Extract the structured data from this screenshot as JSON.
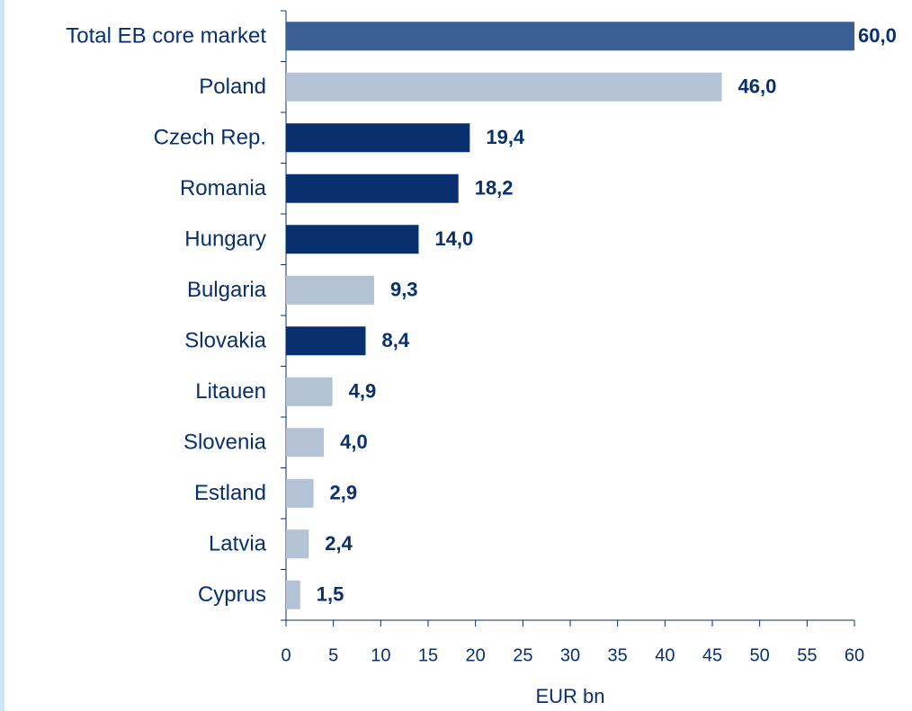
{
  "chart_data": {
    "type": "barh",
    "categories": [
      "Total EB core market",
      "Poland",
      "Czech Rep.",
      "Romania",
      "Hungary",
      "Bulgaria",
      "Slovakia",
      "Litauen",
      "Slovenia",
      "Estland",
      "Latvia",
      "Cyprus"
    ],
    "values": [
      60.0,
      46.0,
      19.4,
      18.2,
      14.0,
      9.3,
      8.4,
      4.9,
      4.0,
      2.9,
      2.4,
      1.5
    ],
    "value_labels": [
      "60,0",
      "46,0",
      "19,4",
      "18,2",
      "14,0",
      "9,3",
      "8,4",
      "4,9",
      "4,0",
      "2,9",
      "2,4",
      "1,5"
    ],
    "colors": [
      "#3a5f94",
      "#b4c2d6",
      "#08306e",
      "#08306e",
      "#08306e",
      "#b4c2d6",
      "#08306e",
      "#b4c2d6",
      "#b4c2d6",
      "#b4c2d6",
      "#b4c2d6",
      "#b4c2d6"
    ],
    "xlabel": "EUR bn",
    "xlim": [
      0,
      60
    ],
    "xticks": [
      0,
      5,
      10,
      15,
      20,
      25,
      30,
      35,
      40,
      45,
      50,
      55,
      60
    ]
  }
}
